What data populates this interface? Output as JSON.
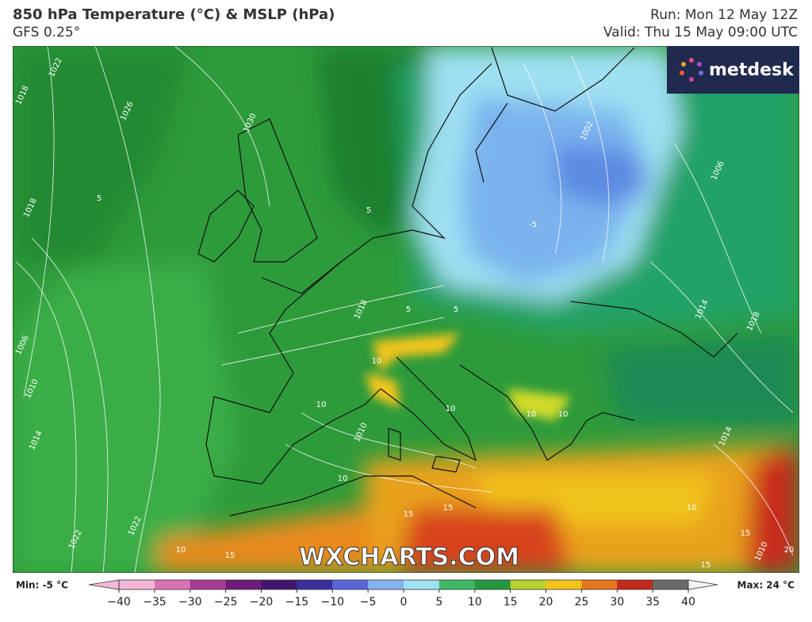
{
  "header": {
    "title": "850 hPa Temperature (°C) & MSLP (hPa)",
    "model": "GFS 0.25°",
    "run": "Run: Mon 12 May 12Z",
    "valid": "Valid: Thu 15 May 09:00 UTC"
  },
  "logo": "metdesk",
  "watermark": "WXCHARTS.COM",
  "map_labels": [
    "1022",
    "1018",
    "1026",
    "1030",
    "1018",
    "1006",
    "1010",
    "1014",
    "1022",
    "1022",
    "1018",
    "1002",
    "1006",
    "1014",
    "1018",
    "1014",
    "1010",
    "1010",
    "5",
    "5",
    "-5",
    "5",
    "5",
    "10",
    "10",
    "10",
    "10",
    "10",
    "10",
    "15",
    "15",
    "15",
    "15",
    "10",
    "10",
    "15",
    "20"
  ],
  "colorbar": {
    "min_label": "Min: -5 °C",
    "max_label": "Max: 24 °C",
    "xlim": [
      -40,
      40
    ],
    "xticks": [
      {
        "value": -40,
        "label": "−40"
      },
      {
        "value": -35,
        "label": "−35"
      },
      {
        "value": -30,
        "label": "−30"
      },
      {
        "value": -25,
        "label": "−25"
      },
      {
        "value": -20,
        "label": "−20"
      },
      {
        "value": -15,
        "label": "−15"
      },
      {
        "value": -10,
        "label": "−10"
      },
      {
        "value": -5,
        "label": "−5"
      },
      0,
      5,
      10,
      15,
      20,
      25,
      30,
      35,
      40
    ],
    "colors": [
      "#f3b8d6",
      "#d872b0",
      "#a83c93",
      "#6e1c7a",
      "#43166d",
      "#3b2f9e",
      "#5a66d8",
      "#86b2ef",
      "#9fe0f2",
      "#3fb865",
      "#24983f",
      "#b8d22c",
      "#f2c318",
      "#e6761a",
      "#c22a1c",
      "#6a6a6a"
    ]
  }
}
